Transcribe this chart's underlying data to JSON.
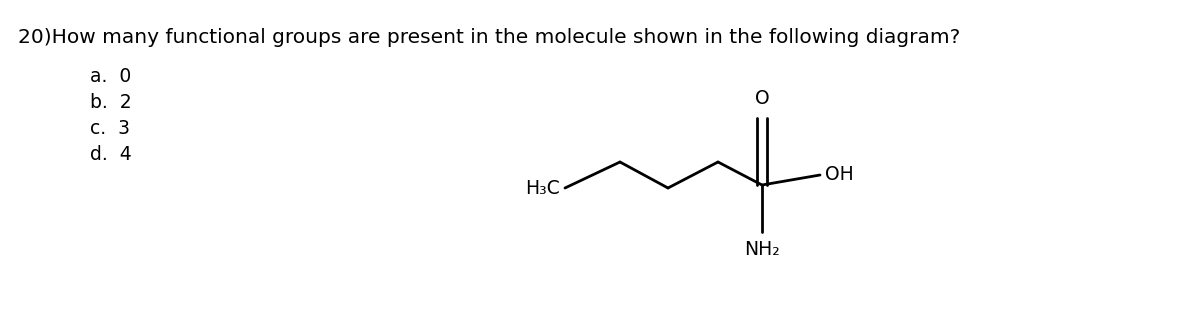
{
  "question": "20)How many functional groups are present in the molecule shown in the following diagram?",
  "choices": [
    "a.  0",
    "b.  2",
    "c.  3",
    "d.  4"
  ],
  "bg_color": "#ffffff",
  "text_color": "#000000",
  "font_size_question": 14.5,
  "font_size_choices": 13.5,
  "molecule": {
    "H3C_label": "H₃C",
    "OH_label": "OH",
    "NH2_label": "NH₂",
    "O_label": "O"
  },
  "fig_width": 12.0,
  "fig_height": 3.31
}
